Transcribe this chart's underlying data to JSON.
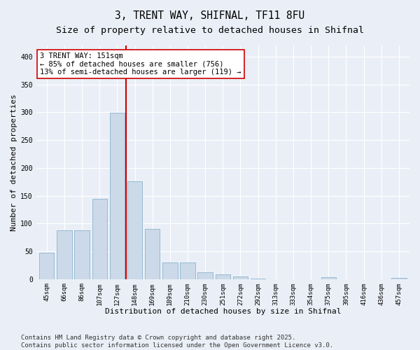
{
  "title1": "3, TRENT WAY, SHIFNAL, TF11 8FU",
  "title2": "Size of property relative to detached houses in Shifnal",
  "xlabel": "Distribution of detached houses by size in Shifnal",
  "ylabel": "Number of detached properties",
  "bar_color": "#ccd9e8",
  "bar_edge_color": "#7aaac8",
  "categories": [
    "45sqm",
    "66sqm",
    "86sqm",
    "107sqm",
    "127sqm",
    "148sqm",
    "169sqm",
    "189sqm",
    "210sqm",
    "230sqm",
    "251sqm",
    "272sqm",
    "292sqm",
    "313sqm",
    "333sqm",
    "354sqm",
    "375sqm",
    "395sqm",
    "416sqm",
    "436sqm",
    "457sqm"
  ],
  "values": [
    47,
    88,
    88,
    144,
    299,
    176,
    90,
    30,
    30,
    12,
    8,
    5,
    1,
    0,
    0,
    0,
    3,
    0,
    0,
    0,
    2
  ],
  "vline_color": "#cc0000",
  "vline_pos": 4.5,
  "annotation_line1": "3 TRENT WAY: 151sqm",
  "annotation_line2": "← 85% of detached houses are smaller (756)",
  "annotation_line3": "13% of semi-detached houses are larger (119) →",
  "annotation_box_color": "#ffffff",
  "annotation_box_edge": "#cc0000",
  "ylim": [
    0,
    420
  ],
  "yticks": [
    0,
    50,
    100,
    150,
    200,
    250,
    300,
    350,
    400
  ],
  "footer1": "Contains HM Land Registry data © Crown copyright and database right 2025.",
  "footer2": "Contains public sector information licensed under the Open Government Licence v3.0.",
  "bg_color": "#eaeff7",
  "plot_bg_color": "#eaeff7",
  "grid_color": "#ffffff",
  "title_fontsize": 10.5,
  "subtitle_fontsize": 9.5,
  "tick_fontsize": 6.5,
  "label_fontsize": 8,
  "footer_fontsize": 6.5,
  "ann_fontsize": 7.5
}
